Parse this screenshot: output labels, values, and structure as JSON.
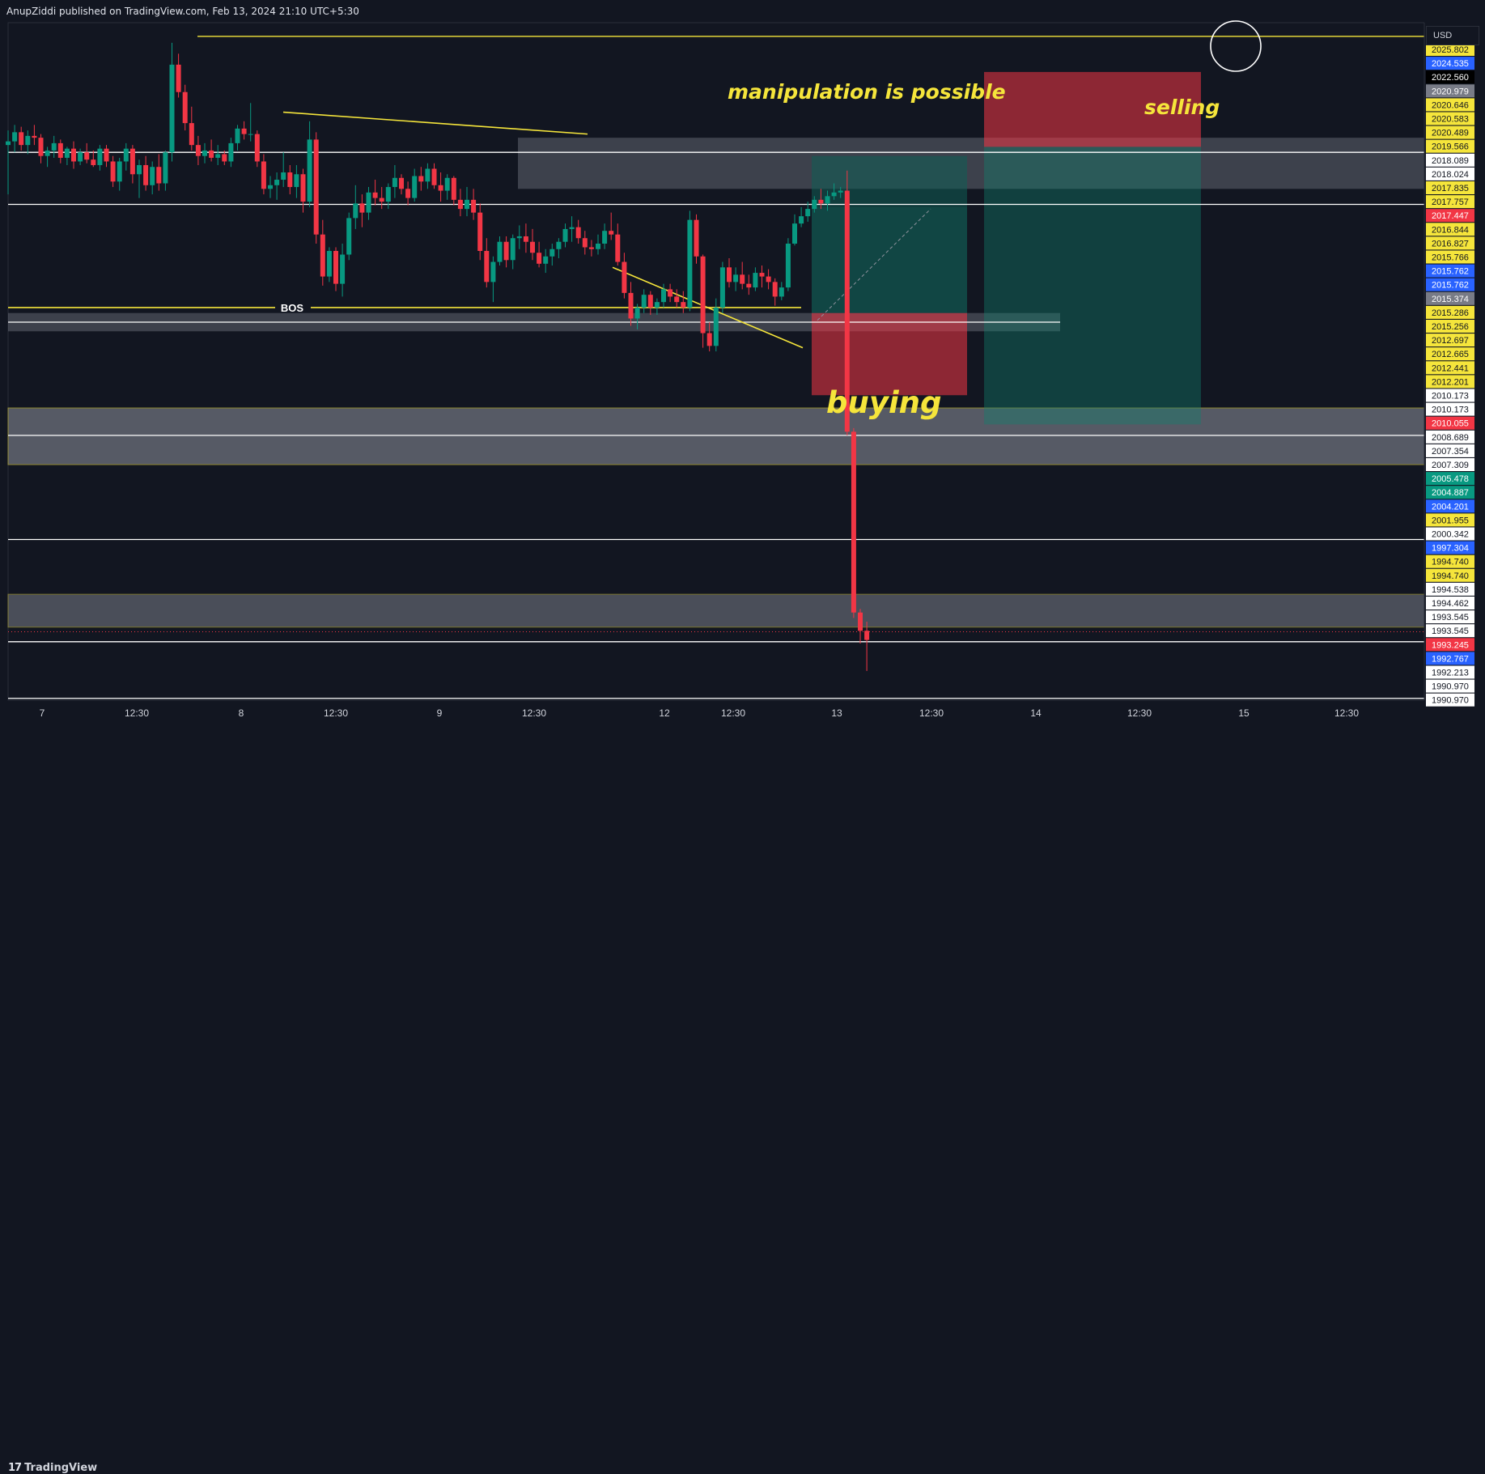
{
  "header": {
    "text": "AnupZiddi published on TradingView.com, Feb 13, 2024 21:10 UTC+5:30"
  },
  "footer": {
    "logo_text": "TradingView",
    "logo_mark": "17"
  },
  "price_scale": {
    "currency": "USD"
  },
  "chart_data": {
    "type": "candlestick",
    "ylim": [
      1989.5,
      2026.6
    ],
    "x_tick_labels": [
      "7",
      "12:30",
      "8",
      "12:30",
      "9",
      "12:30",
      "12",
      "12:30",
      "13",
      "12:30",
      "14",
      "12:30",
      "15",
      "12:30"
    ],
    "price_labels": [
      {
        "value": 2025.802,
        "text": "2025.802",
        "bg": "#f5e53b",
        "fg": "#121621"
      },
      {
        "value": 2024.535,
        "text": "2024.535",
        "bg": "#2962ff",
        "fg": "#ffffff"
      },
      {
        "value": 2022.56,
        "text": "2022.560",
        "bg": "#000000",
        "fg": "#ffffff"
      },
      {
        "value": 2020.979,
        "text": "2020.979",
        "bg": "#787b86",
        "fg": "#ffffff"
      },
      {
        "value": 2020.646,
        "text": "2020.646",
        "bg": "#f5e53b",
        "fg": "#121621"
      },
      {
        "value": 2020.583,
        "text": "2020.583",
        "bg": "#f5e53b",
        "fg": "#121621"
      },
      {
        "value": 2020.489,
        "text": "2020.489",
        "bg": "#f5e53b",
        "fg": "#121621"
      },
      {
        "value": 2019.566,
        "text": "2019.566",
        "bg": "#f5e53b",
        "fg": "#121621"
      },
      {
        "value": 2018.089,
        "text": "2018.089",
        "bg": "#ffffff",
        "fg": "#121621"
      },
      {
        "value": 2018.024,
        "text": "2018.024",
        "bg": "#ffffff",
        "fg": "#121621"
      },
      {
        "value": 2017.835,
        "text": "2017.835",
        "bg": "#f5e53b",
        "fg": "#121621"
      },
      {
        "value": 2017.757,
        "text": "2017.757",
        "bg": "#f5e53b",
        "fg": "#121621"
      },
      {
        "value": 2017.447,
        "text": "2017.447",
        "bg": "#f23645",
        "fg": "#ffffff"
      },
      {
        "value": 2016.844,
        "text": "2016.844",
        "bg": "#f5e53b",
        "fg": "#121621"
      },
      {
        "value": 2016.827,
        "text": "2016.827",
        "bg": "#f5e53b",
        "fg": "#121621"
      },
      {
        "value": 2015.766,
        "text": "2015.766",
        "bg": "#f5e53b",
        "fg": "#121621"
      },
      {
        "value": 2015.762,
        "text": "2015.762",
        "bg": "#2962ff",
        "fg": "#ffffff"
      },
      {
        "value": 2015.762,
        "text": "2015.762",
        "bg": "#2962ff",
        "fg": "#ffffff"
      },
      {
        "value": 2015.374,
        "text": "2015.374",
        "bg": "#787b86",
        "fg": "#ffffff"
      },
      {
        "value": 2015.286,
        "text": "2015.286",
        "bg": "#f5e53b",
        "fg": "#121621"
      },
      {
        "value": 2015.256,
        "text": "2015.256",
        "bg": "#f5e53b",
        "fg": "#121621"
      },
      {
        "value": 2012.697,
        "text": "2012.697",
        "bg": "#f5e53b",
        "fg": "#121621"
      },
      {
        "value": 2012.665,
        "text": "2012.665",
        "bg": "#f5e53b",
        "fg": "#121621"
      },
      {
        "value": 2012.441,
        "text": "2012.441",
        "bg": "#f5e53b",
        "fg": "#121621"
      },
      {
        "value": 2012.201,
        "text": "2012.201",
        "bg": "#f5e53b",
        "fg": "#121621"
      },
      {
        "value": 2010.173,
        "text": "2010.173",
        "bg": "#ffffff",
        "fg": "#121621"
      },
      {
        "value": 2010.173,
        "text": "2010.173",
        "bg": "#ffffff",
        "fg": "#121621"
      },
      {
        "value": 2010.055,
        "text": "2010.055",
        "bg": "#f23645",
        "fg": "#ffffff"
      },
      {
        "value": 2008.689,
        "text": "2008.689",
        "bg": "#ffffff",
        "fg": "#121621"
      },
      {
        "value": 2007.354,
        "text": "2007.354",
        "bg": "#ffffff",
        "fg": "#121621"
      },
      {
        "value": 2007.309,
        "text": "2007.309",
        "bg": "#ffffff",
        "fg": "#121621"
      },
      {
        "value": 2005.478,
        "text": "2005.478",
        "bg": "#089981",
        "fg": "#ffffff"
      },
      {
        "value": 2004.887,
        "text": "2004.887",
        "bg": "#089981",
        "fg": "#ffffff"
      },
      {
        "value": 2004.201,
        "text": "2004.201",
        "bg": "#2962ff",
        "fg": "#ffffff"
      },
      {
        "value": 2001.955,
        "text": "2001.955",
        "bg": "#f5e53b",
        "fg": "#121621"
      },
      {
        "value": 2000.342,
        "text": "2000.342",
        "bg": "#ffffff",
        "fg": "#121621"
      },
      {
        "value": 1997.304,
        "text": "1997.304",
        "bg": "#2962ff",
        "fg": "#ffffff"
      },
      {
        "value": 1994.74,
        "text": "1994.740",
        "bg": "#f5e53b",
        "fg": "#121621"
      },
      {
        "value": 1994.74,
        "text": "1994.740",
        "bg": "#f5e53b",
        "fg": "#121621"
      },
      {
        "value": 1994.538,
        "text": "1994.538",
        "bg": "#ffffff",
        "fg": "#121621"
      },
      {
        "value": 1994.462,
        "text": "1994.462",
        "bg": "#ffffff",
        "fg": "#121621"
      },
      {
        "value": 1993.545,
        "text": "1993.545",
        "bg": "#ffffff",
        "fg": "#121621"
      },
      {
        "value": 1993.545,
        "text": "1993.545",
        "bg": "#ffffff",
        "fg": "#121621"
      },
      {
        "value": 1993.245,
        "text": "1993.245",
        "bg": "#f23645",
        "fg": "#ffffff"
      },
      {
        "value": 1992.767,
        "text": "1992.767",
        "bg": "#2962ff",
        "fg": "#ffffff"
      },
      {
        "value": 1992.213,
        "text": "1992.213",
        "bg": "#ffffff",
        "fg": "#121621"
      },
      {
        "value": 1990.97,
        "text": "1990.970",
        "bg": "#ffffff",
        "fg": "#121621"
      },
      {
        "value": 1990.97,
        "text": "1990.970",
        "bg": "#ffffff",
        "fg": "#121621"
      }
    ],
    "annotations": {
      "bos": "BOS",
      "manipulation": "manipulation is possible",
      "selling": "selling",
      "buying": "buying"
    },
    "colors": {
      "up": "#089981",
      "down": "#f23645",
      "background": "#121621",
      "annotation": "#f5e53b"
    },
    "candles": [
      [
        2019.9,
        2020.7,
        2017.2,
        2020.1
      ],
      [
        2020.1,
        2021.0,
        2019.5,
        2020.6
      ],
      [
        2020.6,
        2020.9,
        2019.6,
        2019.9
      ],
      [
        2019.9,
        2020.7,
        2019.4,
        2020.4
      ],
      [
        2020.4,
        2021.0,
        2019.9,
        2020.3
      ],
      [
        2020.3,
        2020.5,
        2018.9,
        2019.3
      ],
      [
        2019.3,
        2019.8,
        2018.7,
        2019.6
      ],
      [
        2019.6,
        2020.4,
        2019.2,
        2020.0
      ],
      [
        2020.0,
        2020.2,
        2018.9,
        2019.2
      ],
      [
        2019.2,
        2019.8,
        2018.8,
        2019.7
      ],
      [
        2019.7,
        2020.1,
        2018.6,
        2019.0
      ],
      [
        2019.0,
        2019.7,
        2018.8,
        2019.5
      ],
      [
        2019.5,
        2020.0,
        2018.9,
        2019.1
      ],
      [
        2019.1,
        2019.6,
        2018.7,
        2018.8
      ],
      [
        2018.8,
        2019.9,
        2018.5,
        2019.7
      ],
      [
        2019.7,
        2019.9,
        2018.7,
        2019.0
      ],
      [
        2019.0,
        2019.3,
        2017.6,
        2017.9
      ],
      [
        2017.9,
        2019.2,
        2017.4,
        2019.0
      ],
      [
        2019.0,
        2020.0,
        2018.5,
        2019.7
      ],
      [
        2019.7,
        2019.9,
        2017.8,
        2018.3
      ],
      [
        2018.3,
        2019.1,
        2017.0,
        2018.8
      ],
      [
        2018.8,
        2019.3,
        2017.4,
        2017.7
      ],
      [
        2017.7,
        2019.0,
        2017.2,
        2018.7
      ],
      [
        2018.7,
        2019.4,
        2017.4,
        2017.8
      ],
      [
        2017.8,
        2019.6,
        2017.4,
        2019.5
      ],
      [
        2019.5,
        2025.5,
        2019.0,
        2024.3
      ],
      [
        2024.3,
        2024.9,
        2022.5,
        2022.8
      ],
      [
        2022.8,
        2023.2,
        2020.7,
        2021.1
      ],
      [
        2021.1,
        2022.0,
        2019.6,
        2019.9
      ],
      [
        2019.9,
        2020.4,
        2018.8,
        2019.3
      ],
      [
        2019.3,
        2020.0,
        2018.9,
        2019.6
      ],
      [
        2019.6,
        2020.2,
        2019.0,
        2019.2
      ],
      [
        2019.2,
        2019.9,
        2018.8,
        2019.4
      ],
      [
        2019.4,
        2019.6,
        2018.8,
        2019.0
      ],
      [
        2019.0,
        2020.3,
        2018.7,
        2020.0
      ],
      [
        2020.0,
        2021.0,
        2019.6,
        2020.8
      ],
      [
        2020.8,
        2021.2,
        2020.2,
        2020.5
      ],
      [
        2020.5,
        2022.2,
        2020.1,
        2020.5
      ],
      [
        2020.5,
        2020.7,
        2018.7,
        2019.0
      ],
      [
        2019.0,
        2019.4,
        2017.2,
        2017.5
      ],
      [
        2017.5,
        2018.2,
        2017.0,
        2017.7
      ],
      [
        2017.7,
        2018.4,
        2016.9,
        2018.0
      ],
      [
        2018.0,
        2019.5,
        2017.6,
        2018.4
      ],
      [
        2018.4,
        2018.8,
        2017.2,
        2017.6
      ],
      [
        2017.6,
        2018.8,
        2017.0,
        2018.3
      ],
      [
        2018.3,
        2018.6,
        2016.2,
        2016.8
      ],
      [
        2016.8,
        2021.2,
        2016.5,
        2020.2
      ],
      [
        2020.2,
        2020.6,
        2014.5,
        2015.0
      ],
      [
        2015.0,
        2015.8,
        2012.2,
        2012.7
      ],
      [
        2012.7,
        2014.3,
        2012.4,
        2014.1
      ],
      [
        2014.1,
        2014.3,
        2011.9,
        2012.3
      ],
      [
        2012.3,
        2014.5,
        2011.6,
        2013.9
      ],
      [
        2013.9,
        2016.2,
        2013.6,
        2015.9
      ],
      [
        2015.9,
        2017.7,
        2015.3,
        2016.7
      ],
      [
        2016.7,
        2017.2,
        2015.4,
        2016.2
      ],
      [
        2016.2,
        2017.6,
        2015.8,
        2017.3
      ],
      [
        2017.3,
        2018.0,
        2016.6,
        2017.0
      ],
      [
        2017.0,
        2017.6,
        2016.4,
        2016.8
      ],
      [
        2016.8,
        2017.8,
        2016.4,
        2017.6
      ],
      [
        2017.6,
        2018.8,
        2017.0,
        2018.1
      ],
      [
        2018.1,
        2018.3,
        2017.2,
        2017.5
      ],
      [
        2017.5,
        2017.9,
        2016.6,
        2017.0
      ],
      [
        2017.0,
        2018.6,
        2016.8,
        2018.2
      ],
      [
        2018.2,
        2018.7,
        2017.4,
        2017.9
      ],
      [
        2017.9,
        2018.9,
        2017.5,
        2018.6
      ],
      [
        2018.6,
        2018.9,
        2017.5,
        2017.7
      ],
      [
        2017.7,
        2018.4,
        2016.8,
        2017.4
      ],
      [
        2017.4,
        2018.3,
        2016.9,
        2018.1
      ],
      [
        2018.1,
        2018.2,
        2016.6,
        2016.9
      ],
      [
        2016.9,
        2017.5,
        2016.0,
        2016.4
      ],
      [
        2016.4,
        2017.6,
        2016.0,
        2016.9
      ],
      [
        2016.9,
        2017.5,
        2015.8,
        2016.2
      ],
      [
        2016.2,
        2016.7,
        2013.6,
        2014.1
      ],
      [
        2014.1,
        2014.8,
        2012.1,
        2012.4
      ],
      [
        2012.4,
        2013.8,
        2011.3,
        2013.5
      ],
      [
        2013.5,
        2014.9,
        2013.3,
        2014.6
      ],
      [
        2014.6,
        2014.9,
        2013.2,
        2013.6
      ],
      [
        2013.6,
        2015.0,
        2013.1,
        2014.8
      ],
      [
        2014.8,
        2015.5,
        2014.2,
        2014.9
      ],
      [
        2014.9,
        2015.6,
        2014.0,
        2014.6
      ],
      [
        2014.6,
        2015.3,
        2013.6,
        2014.0
      ],
      [
        2014.0,
        2014.6,
        2013.2,
        2013.4
      ],
      [
        2013.4,
        2014.2,
        2012.9,
        2013.8
      ],
      [
        2013.8,
        2014.5,
        2013.3,
        2014.2
      ],
      [
        2014.2,
        2014.8,
        2013.7,
        2014.6
      ],
      [
        2014.6,
        2015.6,
        2014.3,
        2015.3
      ],
      [
        2015.3,
        2016.0,
        2014.6,
        2015.4
      ],
      [
        2015.4,
        2015.8,
        2014.5,
        2014.8
      ],
      [
        2014.8,
        2015.2,
        2013.9,
        2014.3
      ],
      [
        2014.3,
        2014.7,
        2013.8,
        2014.2
      ],
      [
        2014.2,
        2015.0,
        2013.9,
        2014.5
      ],
      [
        2014.5,
        2015.6,
        2014.2,
        2015.2
      ],
      [
        2015.2,
        2016.2,
        2014.7,
        2015.0
      ],
      [
        2015.0,
        2015.6,
        2013.3,
        2013.5
      ],
      [
        2013.5,
        2014.0,
        2011.5,
        2011.8
      ],
      [
        2011.8,
        2012.4,
        2010.0,
        2010.4
      ],
      [
        2010.4,
        2011.2,
        2009.8,
        2011.0
      ],
      [
        2011.0,
        2012.0,
        2010.7,
        2011.7
      ],
      [
        2011.7,
        2011.9,
        2010.6,
        2011.0
      ],
      [
        2011.0,
        2011.5,
        2010.6,
        2011.3
      ],
      [
        2011.3,
        2012.3,
        2011.0,
        2012.0
      ],
      [
        2012.0,
        2012.3,
        2011.3,
        2011.6
      ],
      [
        2011.6,
        2012.0,
        2011.0,
        2011.3
      ],
      [
        2011.3,
        2011.9,
        2010.7,
        2011.0
      ],
      [
        2011.0,
        2016.3,
        2010.8,
        2015.8
      ],
      [
        2015.8,
        2016.1,
        2013.4,
        2013.8
      ],
      [
        2013.8,
        2013.9,
        2008.8,
        2009.6
      ],
      [
        2009.6,
        2010.2,
        2008.6,
        2008.9
      ],
      [
        2008.9,
        2011.5,
        2008.6,
        2011.0
      ],
      [
        2011.0,
        2013.5,
        2010.7,
        2013.2
      ],
      [
        2013.2,
        2013.7,
        2012.1,
        2012.4
      ],
      [
        2012.4,
        2013.2,
        2011.9,
        2012.8
      ],
      [
        2012.8,
        2013.5,
        2012.0,
        2012.3
      ],
      [
        2012.3,
        2012.8,
        2011.7,
        2012.1
      ],
      [
        2012.1,
        2013.2,
        2011.9,
        2012.9
      ],
      [
        2012.9,
        2013.3,
        2012.1,
        2012.7
      ],
      [
        2012.7,
        2013.1,
        2012.0,
        2012.4
      ],
      [
        2012.4,
        2012.6,
        2011.1,
        2011.6
      ],
      [
        2011.6,
        2012.4,
        2011.4,
        2012.1
      ],
      [
        2012.1,
        2014.8,
        2011.9,
        2014.5
      ],
      [
        2014.5,
        2016.1,
        2014.4,
        2015.6
      ],
      [
        2015.6,
        2016.5,
        2015.4,
        2016.0
      ],
      [
        2016.0,
        2016.8,
        2015.7,
        2016.4
      ],
      [
        2016.4,
        2017.1,
        2016.2,
        2016.9
      ],
      [
        2016.9,
        2017.5,
        2016.4,
        2016.7
      ],
      [
        2016.7,
        2017.4,
        2016.3,
        2017.1
      ],
      [
        2017.1,
        2017.8,
        2016.9,
        2017.3
      ],
      [
        2017.3,
        2017.6,
        2017.0,
        2017.4
      ],
      [
        2017.4,
        2018.5,
        2004.0,
        2004.2
      ],
      [
        2004.2,
        2004.4,
        1994.0,
        1994.3
      ],
      [
        1994.3,
        1994.5,
        1992.6,
        1993.3
      ],
      [
        1993.3,
        1993.8,
        1991.1,
        1992.8
      ]
    ]
  }
}
